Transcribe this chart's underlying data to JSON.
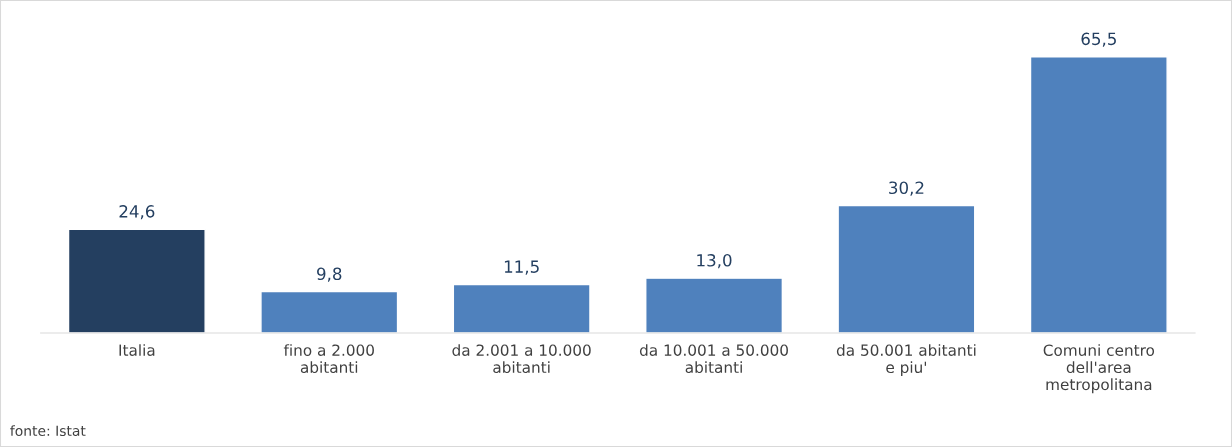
{
  "chart_data": {
    "type": "bar",
    "categories": [
      "Italia",
      "fino a 2.000\nabitanti",
      "da 2.001 a 10.000\nabitanti",
      "da 10.001 a 50.000\nabitanti",
      "da 50.001 abitanti\ne piu'",
      "Comuni centro\ndell'area\nmetropolitana"
    ],
    "values": [
      24.6,
      9.8,
      11.5,
      13.0,
      30.2,
      65.5
    ],
    "colors": [
      "#243f60",
      "#4f81bd",
      "#4f81bd",
      "#4f81bd",
      "#4f81bd",
      "#4f81bd"
    ],
    "value_labels": [
      "24,6",
      "9,8",
      "11,5",
      "13,0",
      "30,2",
      "65,5"
    ],
    "grid": false,
    "annotations": [
      "fonte: Istat"
    ]
  }
}
